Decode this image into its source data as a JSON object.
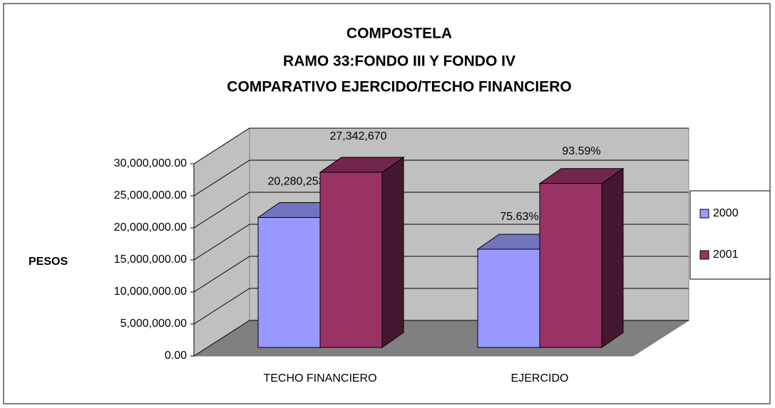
{
  "chart_data": {
    "type": "bar3d",
    "title": [
      "COMPOSTELA",
      "RAMO 33:FONDO III Y FONDO IV",
      "COMPARATIVO EJERCIDO/TECHO FINANCIERO"
    ],
    "y_label": "PESOS",
    "categories": [
      "TECHO FINANCIERO",
      "EJERCIDO"
    ],
    "series": [
      {
        "name": "2000",
        "color": "#9999ff",
        "values": [
          20280253,
          15338000
        ],
        "value_labels": [
          "20,280,253",
          null
        ]
      },
      {
        "name": "2001",
        "color": "#993366",
        "values": [
          27342670,
          25590000
        ],
        "value_labels": [
          "27,342,670",
          null
        ]
      }
    ],
    "annotations": [
      [
        "75.63%",
        "93.59%"
      ]
    ],
    "ylim": [
      0,
      30000000
    ],
    "yticks": [
      {
        "value": 0,
        "label": "0.00"
      },
      {
        "value": 5000000,
        "label": "5,000,000.00"
      },
      {
        "value": 10000000,
        "label": "10,000,000.00"
      },
      {
        "value": 15000000,
        "label": "15,000,000.00"
      },
      {
        "value": 20000000,
        "label": "20,000,000.00"
      },
      {
        "value": 25000000,
        "label": "25,000,000.00"
      },
      {
        "value": 30000000,
        "label": "30,000,000.00"
      }
    ],
    "grid": true,
    "legend": "right"
  }
}
